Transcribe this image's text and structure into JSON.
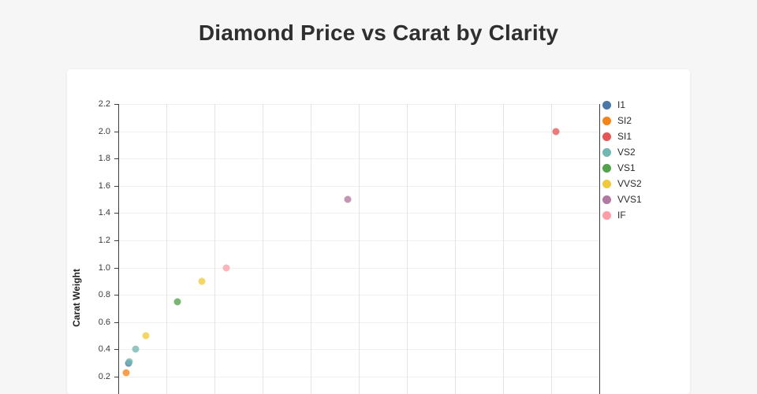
{
  "title": "Diamond Price vs Carat by Clarity",
  "colors": {
    "page_background": "#f6f6f7",
    "card_background": "#ffffff",
    "axis_line": "#3f3f3f",
    "gridline": "#e4e4e4",
    "title_text": "#2f2f2f"
  },
  "legend": {
    "position": "right",
    "items": [
      "I1",
      "SI2",
      "SI1",
      "VS2",
      "VS1",
      "VVS2",
      "VVS1",
      "IF"
    ]
  },
  "chart_data": {
    "type": "scatter",
    "title": "Diamond Price vs Carat by Clarity",
    "xlabel": "",
    "ylabel": "Carat Weight",
    "xlim": [
      0,
      20000
    ],
    "ylim": [
      0.2,
      2.2
    ],
    "x_grid_step": 2000,
    "x_axis_labels_visible": false,
    "grid": true,
    "legend_position": "right",
    "y_ticks": [
      0.2,
      0.4,
      0.6,
      0.8,
      1.0,
      1.2,
      1.4,
      1.6,
      1.8,
      2.0,
      2.2
    ],
    "y_tick_labels": [
      "0.2",
      "0.4",
      "0.6",
      "0.8",
      "1.0",
      "1.2",
      "1.4",
      "1.6",
      "1.8",
      "2.0",
      "2.2"
    ],
    "series": [
      {
        "name": "I1",
        "color": "#4c78a8",
        "points": [
          {
            "carat": 0.3,
            "price": 425
          }
        ]
      },
      {
        "name": "SI2",
        "color": "#f58518",
        "points": [
          {
            "carat": 0.23,
            "price": 326
          }
        ]
      },
      {
        "name": "SI1",
        "color": "#e45756",
        "points": [
          {
            "carat": 2.0,
            "price": 18200
          }
        ]
      },
      {
        "name": "VS2",
        "color": "#72b7b2",
        "points": [
          {
            "carat": 0.31,
            "price": 450
          },
          {
            "carat": 0.4,
            "price": 720
          }
        ]
      },
      {
        "name": "VS1",
        "color": "#54a24b",
        "points": [
          {
            "carat": 0.75,
            "price": 2460
          }
        ]
      },
      {
        "name": "VVS2",
        "color": "#eeca3b",
        "points": [
          {
            "carat": 0.5,
            "price": 1150
          },
          {
            "carat": 0.9,
            "price": 3475
          }
        ]
      },
      {
        "name": "VVS1",
        "color": "#b279a2",
        "points": [
          {
            "carat": 1.5,
            "price": 9540
          }
        ]
      },
      {
        "name": "IF",
        "color": "#ff9da6",
        "points": [
          {
            "carat": 1.0,
            "price": 4490
          }
        ]
      }
    ]
  }
}
